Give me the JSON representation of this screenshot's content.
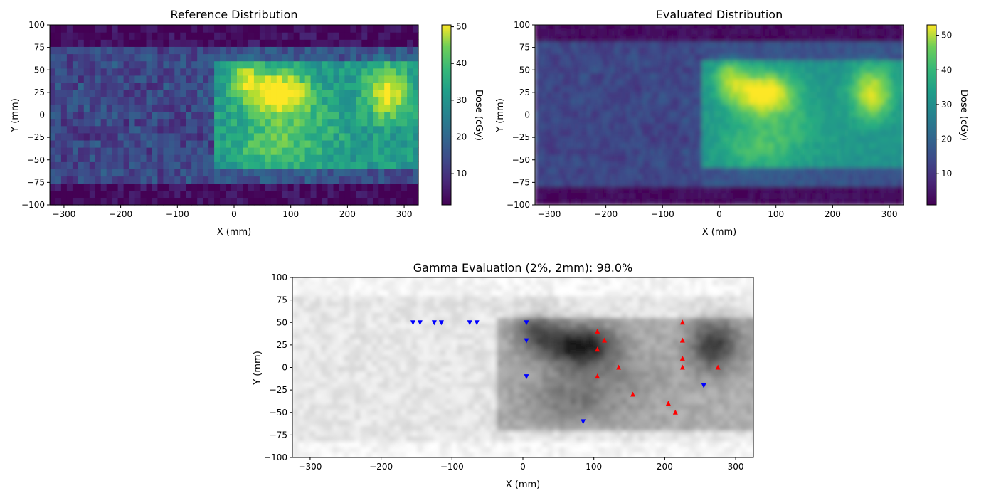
{
  "charts": [
    {
      "type": "heatmap",
      "title": "Reference Distribution",
      "xlabel": "X (mm)",
      "ylabel": "Y (mm)",
      "xlim": [
        -325,
        325
      ],
      "ylim": [
        -100,
        100
      ],
      "xticks": [
        "−300",
        "−200",
        "−100",
        "0",
        "100",
        "200",
        "300"
      ],
      "yticks": [
        "100",
        "75",
        "50",
        "25",
        "0",
        "−25",
        "−50",
        "−75",
        "−100"
      ],
      "colorbar_label": "Dose (cGy)",
      "colorbar_ticks": [
        "10",
        "20",
        "30",
        "40",
        "50"
      ],
      "colorbar_range": [
        1.5,
        50.5
      ],
      "colormap": "viridis"
    },
    {
      "type": "heatmap",
      "title": "Evaluated Distribution",
      "xlabel": "X (mm)",
      "ylabel": "Y (mm)",
      "xlim": [
        -325,
        325
      ],
      "ylim": [
        -100,
        100
      ],
      "xticks": [
        "−300",
        "−200",
        "−100",
        "0",
        "100",
        "200",
        "300"
      ],
      "yticks": [
        "100",
        "75",
        "50",
        "25",
        "0",
        "−25",
        "−50",
        "−75",
        "−100"
      ],
      "colorbar_label": "Dose (cGy)",
      "colorbar_ticks": [
        "10",
        "20",
        "30",
        "40",
        "50"
      ],
      "colorbar_range": [
        1.0,
        53.0
      ],
      "colormap": "viridis"
    },
    {
      "type": "heatmap",
      "title": "Gamma Evaluation (2%, 2mm): 98.0%",
      "xlabel": "X (mm)",
      "ylabel": "Y (mm)",
      "xlim": [
        -325,
        325
      ],
      "ylim": [
        -100,
        100
      ],
      "xticks": [
        "−300",
        "−200",
        "−100",
        "0",
        "100",
        "200",
        "300"
      ],
      "yticks": [
        "100",
        "75",
        "50",
        "25",
        "0",
        "−25",
        "−50",
        "−75",
        "−100"
      ],
      "colormap": "greys"
    }
  ],
  "chart_data": {
    "type": "heatmap",
    "dose_blobs": [
      {
        "x": 80,
        "y": 25,
        "sx": 35,
        "sy": 15,
        "amp": 28
      },
      {
        "x": 20,
        "y": 40,
        "sx": 20,
        "sy": 15,
        "amp": 16
      },
      {
        "x": 270,
        "y": 25,
        "sx": 25,
        "sy": 20,
        "amp": 22
      },
      {
        "x": 100,
        "y": -15,
        "sx": 60,
        "sy": 25,
        "amp": 8
      },
      {
        "x": 60,
        "y": -40,
        "sx": 40,
        "sy": 15,
        "amp": 6
      }
    ],
    "series": [
      {
        "name": "gamma_fail_over",
        "marker": "up-triangle",
        "color": "#ff0000",
        "points": [
          [
            105,
            40
          ],
          [
            115,
            30
          ],
          [
            105,
            20
          ],
          [
            105,
            -10
          ],
          [
            135,
            0
          ],
          [
            155,
            -30
          ],
          [
            205,
            -40
          ],
          [
            215,
            -50
          ],
          [
            225,
            50
          ],
          [
            225,
            30
          ],
          [
            225,
            10
          ],
          [
            225,
            0
          ],
          [
            275,
            0
          ]
        ]
      },
      {
        "name": "gamma_fail_under",
        "marker": "down-triangle",
        "color": "#0000ff",
        "points": [
          [
            -155,
            50
          ],
          [
            -145,
            50
          ],
          [
            -125,
            50
          ],
          [
            -115,
            50
          ],
          [
            -75,
            50
          ],
          [
            -65,
            50
          ],
          [
            5,
            50
          ],
          [
            5,
            30
          ],
          [
            5,
            -10
          ],
          [
            85,
            -60
          ],
          [
            255,
            -20
          ]
        ]
      }
    ]
  }
}
